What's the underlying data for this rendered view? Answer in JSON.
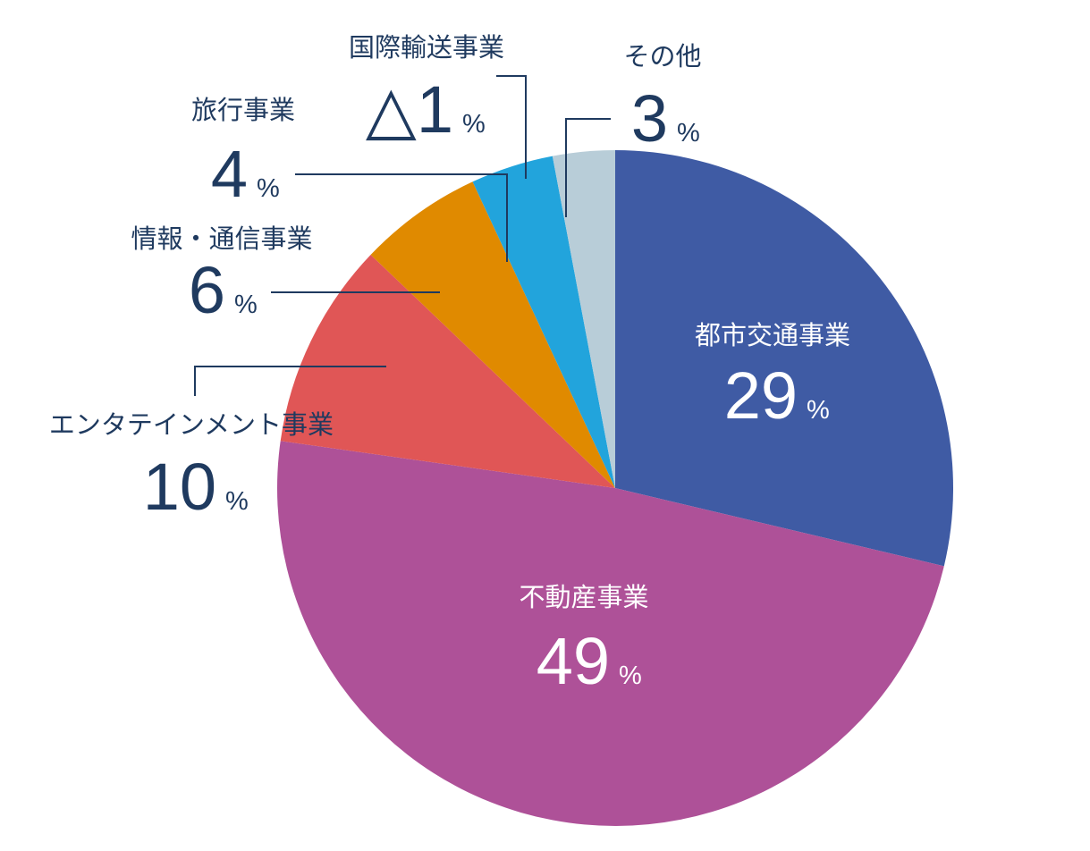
{
  "chart_data": {
    "type": "pie",
    "unit": "%",
    "categories": [
      "都市交通事業",
      "不動産事業",
      "エンタテインメント事業",
      "情報・通信事業",
      "旅行事業",
      "国際輸送事業",
      "その他"
    ],
    "values": [
      29,
      49,
      10,
      6,
      4,
      -1,
      3
    ],
    "value_labels": [
      "29",
      "49",
      "10",
      "6",
      "4",
      "△1",
      "3"
    ],
    "colors": [
      "#3f5ba4",
      "#ae5198",
      "#e05656",
      "#e08a00",
      "#22a4dc",
      "#1f3a5f",
      "#b8cdd8"
    ]
  }
}
